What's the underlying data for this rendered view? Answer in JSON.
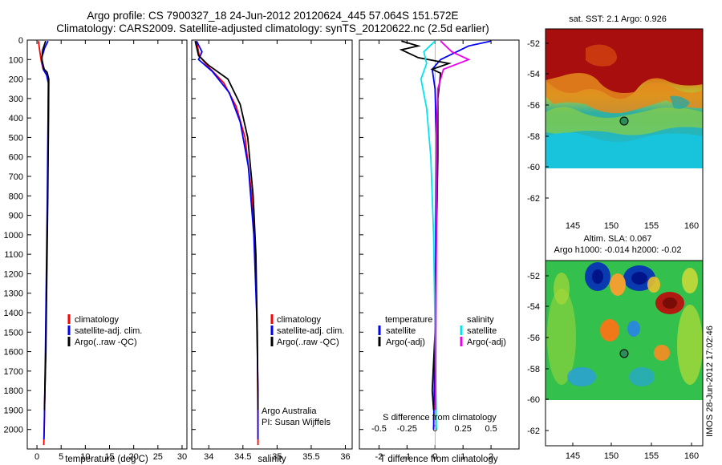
{
  "header": {
    "title_line1": "Argo profile: CS 7900327_18 24-Jun-2012 20120624_445 57.064S 151.572E",
    "title_line2": "Climatology: CARS2009. Satellite-adjusted climatology: synTS_20120622.nc (2.5d earlier)"
  },
  "map_titles": {
    "sst": "sat. SST: 2.1 Argo: 0.926",
    "sla_line1": "Altim. SLA: 0.067",
    "sla_line2": "Argo h1000: -0.014 h2000: -0.02"
  },
  "side_stamp": "IMOS 28-Jun-2012 17:02:46",
  "credit": {
    "line1": "Argo Australia",
    "line2": "PI: Susan Wijffels"
  },
  "colors": {
    "climatology": "#ff0000",
    "satellite": "#0000ff",
    "argo": "#000000",
    "sat_salinity": "#00e5ee",
    "argo_salinity": "#ee00ee"
  },
  "chart_data": [
    {
      "type": "line",
      "panel": "temperature",
      "xlabel": "temperature (deg C)",
      "ylabel": "",
      "xlim": [
        -2,
        31
      ],
      "ylim": [
        2100,
        0
      ],
      "xticks": [
        0,
        5,
        10,
        15,
        20,
        25,
        30
      ],
      "yticks": [
        0,
        100,
        200,
        300,
        400,
        500,
        600,
        700,
        800,
        900,
        1000,
        1100,
        1200,
        1300,
        1400,
        1500,
        1600,
        1700,
        1800,
        1900,
        2000
      ],
      "legend": [
        "climatology",
        "satellite-adj. clim.",
        "Argo(..raw -QC)"
      ],
      "series": [
        {
          "name": "climatology",
          "points": [
            [
              0.3,
              5
            ],
            [
              0.6,
              60
            ],
            [
              0.9,
              110
            ],
            [
              1.3,
              150
            ],
            [
              2.0,
              175
            ],
            [
              2.4,
              200
            ],
            [
              2.35,
              400
            ],
            [
              2.2,
              800
            ],
            [
              2.0,
              1200
            ],
            [
              1.8,
              1600
            ],
            [
              1.5,
              2000
            ],
            [
              1.4,
              2080
            ]
          ]
        },
        {
          "name": "satellite-adj. clim.",
          "points": [
            [
              2.3,
              5
            ],
            [
              1.6,
              40
            ],
            [
              1.0,
              90
            ],
            [
              1.3,
              150
            ],
            [
              2.0,
              180
            ],
            [
              2.35,
              220
            ],
            [
              2.3,
              400
            ],
            [
              2.15,
              800
            ],
            [
              1.95,
              1200
            ],
            [
              1.75,
              1600
            ],
            [
              1.5,
              2000
            ],
            [
              1.45,
              2050
            ]
          ]
        },
        {
          "name": "Argo(..raw -QC)",
          "points": [
            [
              1.8,
              5
            ],
            [
              1.2,
              50
            ],
            [
              1.0,
              100
            ],
            [
              1.5,
              150
            ],
            [
              2.1,
              165
            ],
            [
              2.45,
              200
            ],
            [
              2.4,
              400
            ],
            [
              2.25,
              800
            ],
            [
              2.05,
              1200
            ],
            [
              1.85,
              1600
            ],
            [
              1.55,
              1900
            ]
          ]
        }
      ]
    },
    {
      "type": "line",
      "panel": "salinity",
      "xlabel": "salinity",
      "ylabel": "",
      "xlim": [
        33.75,
        36.1
      ],
      "ylim": [
        2100,
        0
      ],
      "xticks": [
        34,
        34.5,
        35,
        35.5,
        36
      ],
      "legend": [
        "climatology",
        "satellite-adj. clim.",
        "Argo(..raw -QC)"
      ],
      "series": [
        {
          "name": "climatology",
          "points": [
            [
              33.82,
              5
            ],
            [
              33.86,
              80
            ],
            [
              34.0,
              140
            ],
            [
              34.22,
              220
            ],
            [
              34.4,
              340
            ],
            [
              34.53,
              500
            ],
            [
              34.63,
              800
            ],
            [
              34.68,
              1100
            ],
            [
              34.71,
              1500
            ],
            [
              34.72,
              2000
            ],
            [
              34.72,
              2080
            ]
          ]
        },
        {
          "name": "satellite-adj. clim.",
          "points": [
            [
              33.82,
              5
            ],
            [
              33.9,
              60
            ],
            [
              33.85,
              100
            ],
            [
              34.05,
              160
            ],
            [
              34.3,
              270
            ],
            [
              34.46,
              420
            ],
            [
              34.58,
              650
            ],
            [
              34.66,
              1000
            ],
            [
              34.7,
              1400
            ],
            [
              34.72,
              1800
            ],
            [
              34.72,
              2050
            ]
          ]
        },
        {
          "name": "Argo(..raw -QC)",
          "points": [
            [
              33.8,
              5
            ],
            [
              33.85,
              80
            ],
            [
              34.0,
              130
            ],
            [
              34.28,
              200
            ],
            [
              34.46,
              330
            ],
            [
              34.57,
              500
            ],
            [
              34.65,
              800
            ],
            [
              34.69,
              1100
            ],
            [
              34.71,
              1500
            ],
            [
              34.72,
              1900
            ]
          ]
        }
      ]
    },
    {
      "type": "line",
      "panel": "difference",
      "xlabel": "T difference from climatology",
      "xlabel_top": "S difference from climatology",
      "xlim": [
        -2.7,
        3.0
      ],
      "ylim": [
        2100,
        0
      ],
      "xticks": [
        -2,
        -1,
        0,
        1,
        2
      ],
      "xticks_top": [
        "-0.5",
        "-0.25",
        "0",
        "0.25",
        "0.5"
      ],
      "legend_headers": [
        "temperature",
        "salinity"
      ],
      "legend": [
        "satellite",
        "Argo(-adj)",
        "satellite",
        "Argo(-adj)"
      ],
      "series": [
        {
          "name": "temperature satellite",
          "points": [
            [
              2.0,
              5
            ],
            [
              1.2,
              30
            ],
            [
              0.2,
              100
            ],
            [
              -0.1,
              150
            ],
            [
              0.0,
              250
            ],
            [
              0.05,
              500
            ],
            [
              0.03,
              1000
            ],
            [
              0.0,
              1500
            ],
            [
              -0.05,
              2000
            ]
          ]
        },
        {
          "name": "temperature Argo(-adj)",
          "points": [
            [
              -1.2,
              5
            ],
            [
              -0.6,
              30
            ],
            [
              -1.2,
              50
            ],
            [
              -0.6,
              90
            ],
            [
              0.5,
              120
            ],
            [
              -0.1,
              150
            ],
            [
              0.2,
              170
            ],
            [
              0.1,
              300
            ],
            [
              0.1,
              600
            ],
            [
              0.05,
              1000
            ],
            [
              0.0,
              1500
            ],
            [
              -0.1,
              1800
            ],
            [
              -0.05,
              1900
            ]
          ]
        },
        {
          "name": "salinity satellite",
          "points": [
            [
              0.0,
              5
            ],
            [
              -0.4,
              60
            ],
            [
              -0.3,
              120
            ],
            [
              -0.5,
              200
            ],
            [
              -0.3,
              350
            ],
            [
              -0.15,
              600
            ],
            [
              -0.05,
              1000
            ],
            [
              0.0,
              1500
            ],
            [
              0.05,
              2000
            ]
          ]
        },
        {
          "name": "salinity Argo(-adj)",
          "points": [
            [
              0.2,
              5
            ],
            [
              0.6,
              60
            ],
            [
              1.2,
              100
            ],
            [
              0.3,
              150
            ],
            [
              0.1,
              250
            ],
            [
              0.05,
              500
            ],
            [
              0.05,
              1000
            ],
            [
              0.03,
              1500
            ],
            [
              0.02,
              1900
            ]
          ]
        }
      ]
    }
  ],
  "maps": {
    "sst": {
      "yticks": [
        "-52",
        "-54",
        "-56",
        "-58",
        "-60",
        "-62"
      ],
      "xticks": [
        "145",
        "150",
        "155",
        "160"
      ]
    },
    "sla": {
      "yticks": [
        "-52",
        "-54",
        "-56",
        "-58",
        "-60",
        "-62"
      ],
      "xticks": [
        "145",
        "150",
        "155",
        "160"
      ]
    }
  }
}
